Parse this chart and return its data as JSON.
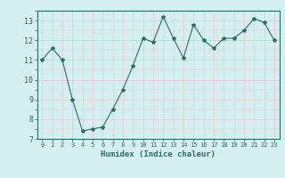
{
  "x": [
    0,
    1,
    2,
    3,
    4,
    5,
    6,
    7,
    8,
    9,
    10,
    11,
    12,
    13,
    14,
    15,
    16,
    17,
    18,
    19,
    20,
    21,
    22,
    23
  ],
  "y": [
    11.0,
    11.6,
    11.0,
    9.0,
    7.4,
    7.5,
    7.6,
    8.5,
    9.5,
    10.7,
    12.1,
    11.9,
    13.2,
    12.1,
    11.1,
    12.8,
    12.0,
    11.6,
    12.1,
    12.1,
    12.5,
    13.1,
    12.9,
    12.0
  ],
  "line_color": "#2e6b6b",
  "marker": "*",
  "marker_size": 3,
  "xlabel": "Humidex (Indice chaleur)",
  "ylim": [
    7,
    13.5
  ],
  "xlim": [
    -0.5,
    23.5
  ],
  "yticks": [
    7,
    8,
    9,
    10,
    11,
    12,
    13
  ],
  "xticks": [
    0,
    1,
    2,
    3,
    4,
    5,
    6,
    7,
    8,
    9,
    10,
    11,
    12,
    13,
    14,
    15,
    16,
    17,
    18,
    19,
    20,
    21,
    22,
    23
  ],
  "bg_color": "#d5eef0",
  "grid_color": "#e8c8c8"
}
